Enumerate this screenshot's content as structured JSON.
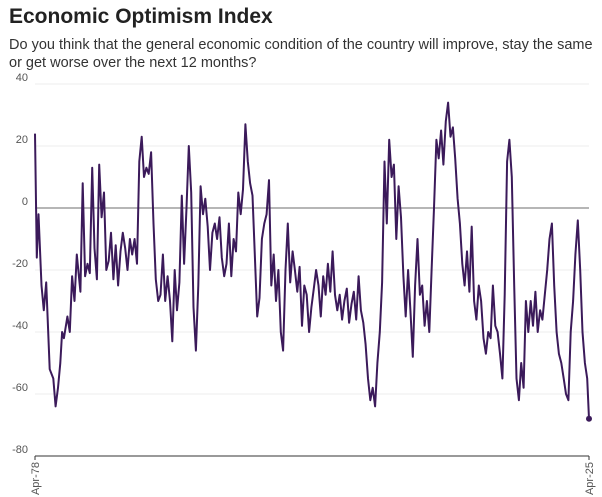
{
  "chart_data": {
    "type": "line",
    "title": "Economic Optimism Index",
    "subtitle": "Do you think that the general economic condition of the country will improve, stay the same or get worse over the next 12 months?",
    "xlabel": "",
    "ylabel": "",
    "xlim": [
      1978.25,
      2025.25
    ],
    "ylim": [
      -80,
      40
    ],
    "yticks": [
      40,
      20,
      0,
      -20,
      -40,
      -60,
      -80
    ],
    "xtick_labels": [
      "Apr-78",
      "Apr-25"
    ],
    "grid": true,
    "series": [
      {
        "color": "#3b1a5a",
        "points": [
          [
            1978.25,
            24
          ],
          [
            1978.4,
            -16
          ],
          [
            1978.55,
            -2
          ],
          [
            1978.8,
            -25
          ],
          [
            1979.0,
            -33
          ],
          [
            1979.2,
            -24
          ],
          [
            1979.5,
            -52
          ],
          [
            1979.8,
            -55
          ],
          [
            1980.0,
            -64
          ],
          [
            1980.2,
            -58
          ],
          [
            1980.4,
            -50
          ],
          [
            1980.55,
            -40
          ],
          [
            1980.7,
            -42
          ],
          [
            1981.0,
            -35
          ],
          [
            1981.2,
            -40
          ],
          [
            1981.4,
            -22
          ],
          [
            1981.6,
            -30
          ],
          [
            1981.8,
            -15
          ],
          [
            1982.1,
            -27
          ],
          [
            1982.3,
            8
          ],
          [
            1982.5,
            -22
          ],
          [
            1982.7,
            -18
          ],
          [
            1982.9,
            -21
          ],
          [
            1983.1,
            13
          ],
          [
            1983.3,
            -13
          ],
          [
            1983.5,
            -23
          ],
          [
            1983.7,
            14
          ],
          [
            1983.9,
            -3
          ],
          [
            1984.1,
            5
          ],
          [
            1984.3,
            -20
          ],
          [
            1984.5,
            -17
          ],
          [
            1984.7,
            -8
          ],
          [
            1984.9,
            -23
          ],
          [
            1985.1,
            -12
          ],
          [
            1985.3,
            -25
          ],
          [
            1985.5,
            -14
          ],
          [
            1985.7,
            -8
          ],
          [
            1985.9,
            -13
          ],
          [
            1986.1,
            -20
          ],
          [
            1986.3,
            -10
          ],
          [
            1986.5,
            -15
          ],
          [
            1986.7,
            -10
          ],
          [
            1986.9,
            -18
          ],
          [
            1987.1,
            15
          ],
          [
            1987.3,
            23
          ],
          [
            1987.5,
            10
          ],
          [
            1987.7,
            13
          ],
          [
            1987.9,
            11
          ],
          [
            1988.1,
            18
          ],
          [
            1988.3,
            -5
          ],
          [
            1988.5,
            -23
          ],
          [
            1988.7,
            -30
          ],
          [
            1988.9,
            -28
          ],
          [
            1989.1,
            -15
          ],
          [
            1989.3,
            -30
          ],
          [
            1989.5,
            -22
          ],
          [
            1989.7,
            -30
          ],
          [
            1989.9,
            -43
          ],
          [
            1990.1,
            -20
          ],
          [
            1990.3,
            -33
          ],
          [
            1990.5,
            -24
          ],
          [
            1990.7,
            4
          ],
          [
            1990.9,
            -18
          ],
          [
            1991.1,
            0
          ],
          [
            1991.3,
            20
          ],
          [
            1991.5,
            5
          ],
          [
            1991.7,
            -32
          ],
          [
            1991.9,
            -46
          ],
          [
            1992.1,
            -25
          ],
          [
            1992.3,
            7
          ],
          [
            1992.5,
            -2
          ],
          [
            1992.7,
            3
          ],
          [
            1992.9,
            -6
          ],
          [
            1993.1,
            -20
          ],
          [
            1993.3,
            -8
          ],
          [
            1993.5,
            -5
          ],
          [
            1993.7,
            -10
          ],
          [
            1993.9,
            -3
          ],
          [
            1994.1,
            -16
          ],
          [
            1994.3,
            -22
          ],
          [
            1994.5,
            -18
          ],
          [
            1994.7,
            -5
          ],
          [
            1994.9,
            -22
          ],
          [
            1995.1,
            -10
          ],
          [
            1995.3,
            -14
          ],
          [
            1995.5,
            5
          ],
          [
            1995.7,
            -2
          ],
          [
            1995.9,
            6
          ],
          [
            1996.1,
            27
          ],
          [
            1996.3,
            15
          ],
          [
            1996.5,
            8
          ],
          [
            1996.7,
            4
          ],
          [
            1996.9,
            -15
          ],
          [
            1997.1,
            -35
          ],
          [
            1997.3,
            -29
          ],
          [
            1997.5,
            -10
          ],
          [
            1997.7,
            -5
          ],
          [
            1997.9,
            -2
          ],
          [
            1998.1,
            9
          ],
          [
            1998.3,
            -25
          ],
          [
            1998.5,
            -15
          ],
          [
            1998.7,
            -30
          ],
          [
            1998.9,
            -20
          ],
          [
            1999.1,
            -40
          ],
          [
            1999.3,
            -46
          ],
          [
            1999.5,
            -20
          ],
          [
            1999.7,
            -5
          ],
          [
            1999.9,
            -24
          ],
          [
            2000.1,
            -14
          ],
          [
            2000.3,
            -20
          ],
          [
            2000.5,
            -27
          ],
          [
            2000.7,
            -19
          ],
          [
            2000.9,
            -38
          ],
          [
            2001.1,
            -25
          ],
          [
            2001.3,
            -28
          ],
          [
            2001.5,
            -40
          ],
          [
            2001.7,
            -32
          ],
          [
            2001.9,
            -26
          ],
          [
            2002.1,
            -20
          ],
          [
            2002.3,
            -25
          ],
          [
            2002.5,
            -35
          ],
          [
            2002.7,
            -22
          ],
          [
            2002.9,
            -28
          ],
          [
            2003.1,
            -18
          ],
          [
            2003.3,
            -27
          ],
          [
            2003.5,
            -14
          ],
          [
            2003.7,
            -28
          ],
          [
            2003.9,
            -33
          ],
          [
            2004.1,
            -28
          ],
          [
            2004.3,
            -36
          ],
          [
            2004.5,
            -30
          ],
          [
            2004.7,
            -26
          ],
          [
            2004.9,
            -37
          ],
          [
            2005.1,
            -31
          ],
          [
            2005.3,
            -27
          ],
          [
            2005.5,
            -36
          ],
          [
            2005.7,
            -22
          ],
          [
            2005.9,
            -33
          ],
          [
            2006.1,
            -37
          ],
          [
            2006.3,
            -44
          ],
          [
            2006.5,
            -55
          ],
          [
            2006.7,
            -62
          ],
          [
            2006.9,
            -58
          ],
          [
            2007.1,
            -64
          ],
          [
            2007.3,
            -50
          ],
          [
            2007.5,
            -40
          ],
          [
            2007.7,
            -24
          ],
          [
            2007.9,
            15
          ],
          [
            2008.1,
            -5
          ],
          [
            2008.3,
            22
          ],
          [
            2008.5,
            10
          ],
          [
            2008.7,
            14
          ],
          [
            2008.9,
            -10
          ],
          [
            2009.1,
            7
          ],
          [
            2009.3,
            -3
          ],
          [
            2009.5,
            -22
          ],
          [
            2009.7,
            -35
          ],
          [
            2009.9,
            -20
          ],
          [
            2010.1,
            -33
          ],
          [
            2010.3,
            -48
          ],
          [
            2010.5,
            -25
          ],
          [
            2010.7,
            -10
          ],
          [
            2010.9,
            -28
          ],
          [
            2011.1,
            -25
          ],
          [
            2011.3,
            -38
          ],
          [
            2011.5,
            -30
          ],
          [
            2011.7,
            -40
          ],
          [
            2011.9,
            -20
          ],
          [
            2012.1,
            0
          ],
          [
            2012.3,
            22
          ],
          [
            2012.5,
            16
          ],
          [
            2012.7,
            25
          ],
          [
            2012.9,
            14
          ],
          [
            2013.1,
            28
          ],
          [
            2013.3,
            34
          ],
          [
            2013.5,
            23
          ],
          [
            2013.7,
            26
          ],
          [
            2013.9,
            16
          ],
          [
            2014.1,
            3
          ],
          [
            2014.3,
            -5
          ],
          [
            2014.5,
            -18
          ],
          [
            2014.7,
            -25
          ],
          [
            2014.9,
            -14
          ],
          [
            2015.1,
            -27
          ],
          [
            2015.3,
            -6
          ],
          [
            2015.5,
            -30
          ],
          [
            2015.7,
            -36
          ],
          [
            2015.9,
            -25
          ],
          [
            2016.1,
            -30
          ],
          [
            2016.3,
            -42
          ],
          [
            2016.5,
            -47
          ],
          [
            2016.7,
            -40
          ],
          [
            2016.9,
            -42
          ],
          [
            2017.1,
            -25
          ],
          [
            2017.3,
            -38
          ],
          [
            2017.5,
            -40
          ],
          [
            2017.7,
            -47
          ],
          [
            2017.9,
            -55
          ],
          [
            2018.1,
            -28
          ],
          [
            2018.3,
            15
          ],
          [
            2018.5,
            22
          ],
          [
            2018.7,
            10
          ],
          [
            2018.9,
            -25
          ],
          [
            2019.1,
            -55
          ],
          [
            2019.3,
            -62
          ],
          [
            2019.5,
            -50
          ],
          [
            2019.7,
            -58
          ],
          [
            2019.9,
            -30
          ],
          [
            2020.1,
            -40
          ],
          [
            2020.3,
            -30
          ],
          [
            2020.5,
            -38
          ],
          [
            2020.7,
            -27
          ],
          [
            2020.9,
            -40
          ],
          [
            2021.1,
            -33
          ],
          [
            2021.3,
            -36
          ],
          [
            2021.5,
            -28
          ],
          [
            2021.7,
            -20
          ],
          [
            2021.9,
            -10
          ],
          [
            2022.1,
            -5
          ],
          [
            2022.3,
            -25
          ],
          [
            2022.5,
            -40
          ],
          [
            2022.7,
            -47
          ],
          [
            2022.9,
            -50
          ],
          [
            2023.1,
            -55
          ],
          [
            2023.3,
            -60
          ],
          [
            2023.5,
            -62
          ],
          [
            2023.7,
            -40
          ],
          [
            2023.9,
            -30
          ],
          [
            2024.1,
            -15
          ],
          [
            2024.3,
            -4
          ],
          [
            2024.5,
            -20
          ],
          [
            2024.7,
            -40
          ],
          [
            2024.9,
            -50
          ],
          [
            2025.1,
            -55
          ],
          [
            2025.25,
            -68
          ]
        ]
      }
    ]
  }
}
